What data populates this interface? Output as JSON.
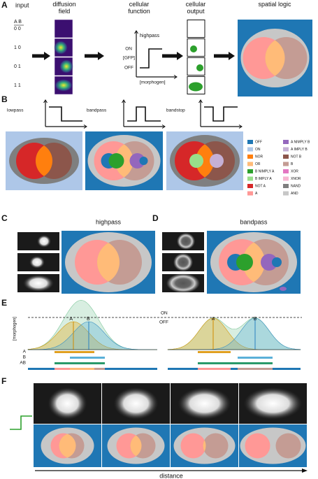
{
  "panel_labels": [
    "A",
    "B",
    "C",
    "D",
    "E",
    "F"
  ],
  "panel_a": {
    "input": "input",
    "diffusion_field": "diffusion field",
    "cellular_function": "cellular function",
    "cellular_output": "cellular output",
    "spatial_logic": "spatial logic",
    "ab_header": "A B",
    "ab_rows": [
      "0 0",
      "1 0",
      "0 1",
      "1 1"
    ],
    "function_name": "highpass",
    "on": "ON",
    "gfp": "[GFP]",
    "off": "OFF",
    "morphogen": "[morphogen]"
  },
  "panel_b": {
    "functions": [
      "lowpass",
      "bandpass",
      "bandstop"
    ],
    "legend": [
      {
        "label": "OFF",
        "color": "#1f77b4"
      },
      {
        "label": "ON",
        "color": "#aec7e8"
      },
      {
        "label": "NOR",
        "color": "#ff7f0e"
      },
      {
        "label": "OR",
        "color": "#ffbb78"
      },
      {
        "label": "B NIMPLY A",
        "color": "#2ca02c"
      },
      {
        "label": "B IMPLY A",
        "color": "#98df8a"
      },
      {
        "label": "NOT A",
        "color": "#d62728"
      },
      {
        "label": "A",
        "color": "#ff9896"
      },
      {
        "label": "A NIMPLY B",
        "color": "#9467bd"
      },
      {
        "label": "A IMPLY B",
        "color": "#c5b0d5"
      },
      {
        "label": "NOT B",
        "color": "#8c564b"
      },
      {
        "label": "B",
        "color": "#c49c94"
      },
      {
        "label": "XOR",
        "color": "#e377c2"
      },
      {
        "label": "XNOR",
        "color": "#f7b6d2"
      },
      {
        "label": "NAND",
        "color": "#7f7f7f"
      },
      {
        "label": "AND",
        "color": "#c7c7c7"
      }
    ]
  },
  "panel_c": {
    "title": "highpass"
  },
  "panel_d": {
    "title": "bandpass"
  },
  "panel_e": {
    "y_label": "[morphogen]",
    "on": "ON",
    "off": "OFF",
    "peak_labels": [
      "A",
      "B",
      "A",
      "B"
    ],
    "row_labels": [
      "A",
      "B",
      "AB"
    ]
  },
  "panel_f": {
    "x_label": "distance"
  }
}
